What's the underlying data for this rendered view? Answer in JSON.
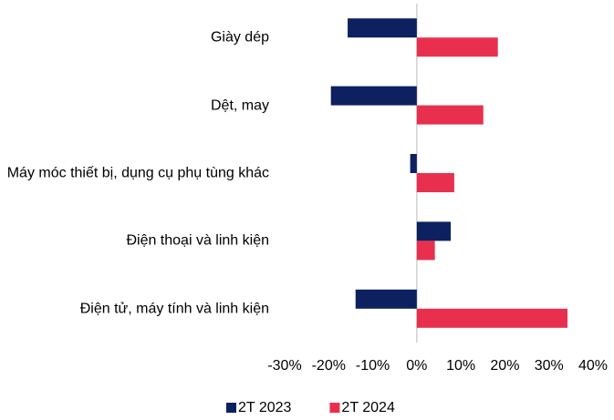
{
  "chart_data": {
    "type": "hbar",
    "categories": [
      "Giày dép",
      "Dệt, may",
      "Máy móc thiết bị, dụng cụ phụ tùng khác",
      "Điện thoại và linh kiện",
      "Điện tử, máy tính và linh kiện"
    ],
    "series": [
      {
        "name": "2T 2023",
        "color": "#0d2160",
        "values": [
          -15.7,
          -19.5,
          -1.5,
          7.7,
          -13.9
        ]
      },
      {
        "name": "2T 2024",
        "color": "#e8304e",
        "values": [
          18.4,
          15.1,
          8.5,
          4.1,
          34.2
        ]
      }
    ],
    "xlim": [
      -30,
      40
    ],
    "xticks": [
      {
        "value": -30,
        "label": "-30%"
      },
      {
        "value": -20,
        "label": "-20%"
      },
      {
        "value": -10,
        "label": "-10%"
      },
      {
        "value": 0,
        "label": "0%"
      },
      {
        "value": 10,
        "label": "10%"
      },
      {
        "value": 20,
        "label": "20%"
      },
      {
        "value": 30,
        "label": "30%"
      },
      {
        "value": 40,
        "label": "40%"
      }
    ],
    "legend": "bottom"
  }
}
